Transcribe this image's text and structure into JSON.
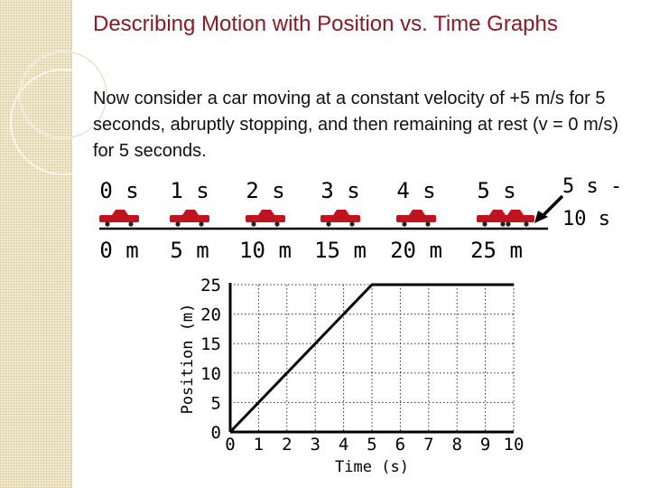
{
  "slide": {
    "title": "Describing Motion with Position vs. Time Graphs",
    "body": "Now consider a car moving at a constant velocity of +5 m/s for 5 seconds, abruptly stopping, and then remaining at rest (v = 0 m/s) for 5 seconds."
  },
  "colors": {
    "title": "#8b1a22",
    "car": "#c1121f",
    "line": "#000000"
  },
  "motion_diagram": {
    "times": [
      "0 s",
      "1 s",
      "2 s",
      "3 s",
      "4 s",
      "5 s"
    ],
    "positions": [
      "0 m",
      "5 m",
      "10 m",
      "15 m",
      "20 m",
      "25 m"
    ],
    "callout_line1": "5 s -",
    "callout_line2": "10 s"
  },
  "chart_data": {
    "type": "line",
    "xlabel": "Time (s)",
    "ylabel": "Position (m)",
    "xlim": [
      0,
      10
    ],
    "ylim": [
      0,
      25
    ],
    "xticks": [
      0,
      1,
      2,
      3,
      4,
      5,
      6,
      7,
      8,
      9,
      10
    ],
    "yticks": [
      0,
      5,
      10,
      15,
      20,
      25
    ],
    "grid": true,
    "series": [
      {
        "x": [
          0,
          5,
          10
        ],
        "y": [
          0,
          25,
          25
        ]
      }
    ]
  }
}
